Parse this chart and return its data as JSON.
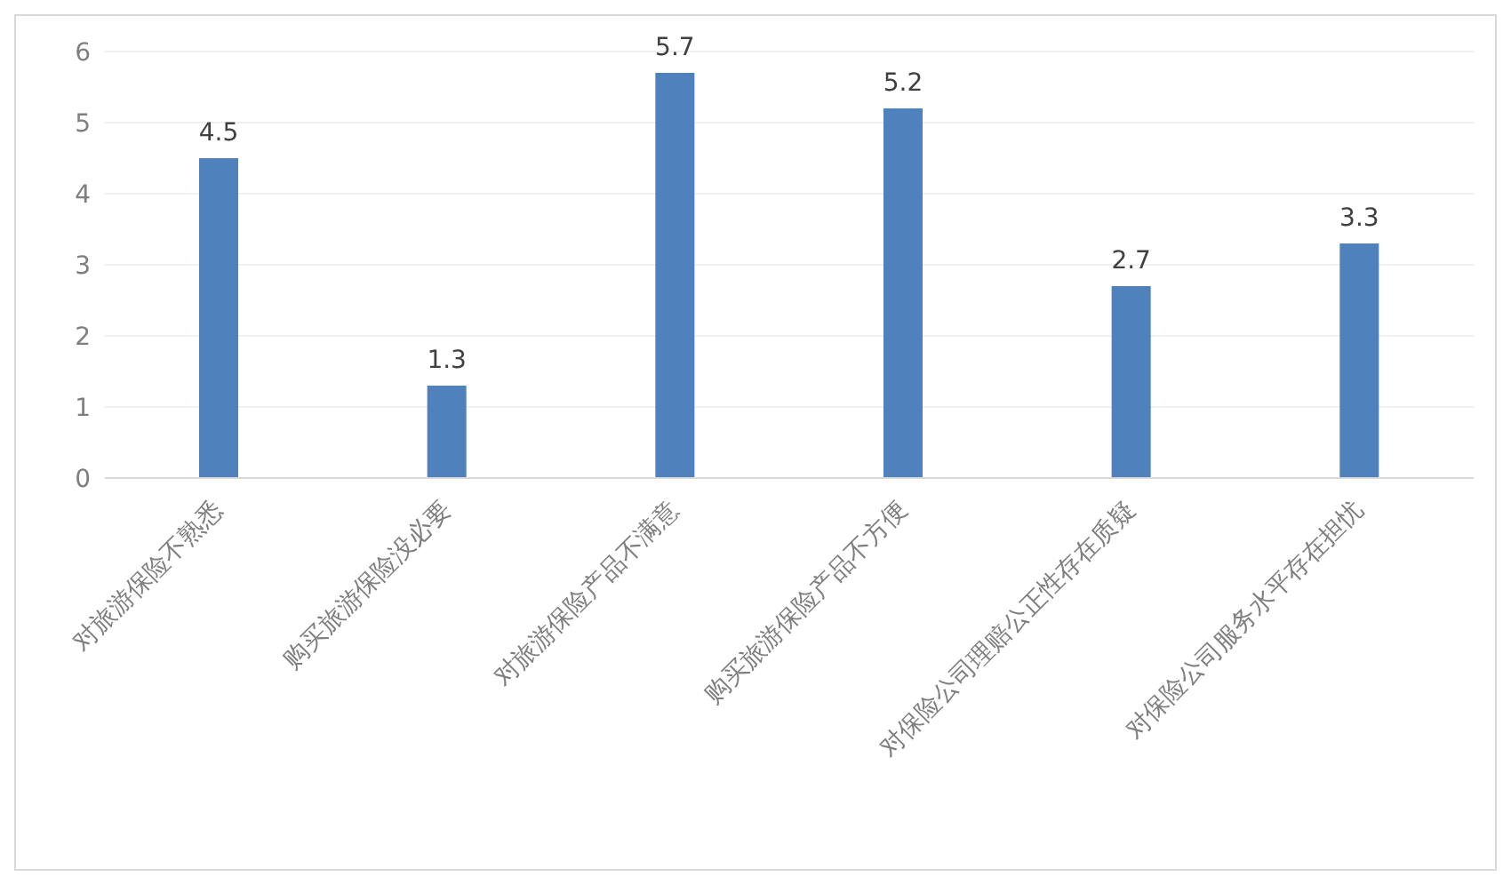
{
  "chart_data": {
    "type": "bar",
    "categories": [
      "对旅游保险不熟悉",
      "购买旅游保险没必要",
      "对旅游保险产品不满意",
      "购买旅游保险产品不方便",
      "对保险公司理赔公正性存在质疑",
      "对保险公司服务水平存在担忧"
    ],
    "values": [
      4.5,
      1.3,
      5.7,
      5.2,
      2.7,
      3.3
    ],
    "color": "#4f81bd",
    "ylim": [
      0,
      6
    ],
    "yticks": [
      0,
      1,
      2,
      3,
      4,
      5,
      6
    ],
    "grid": "y",
    "data_labels": true
  }
}
